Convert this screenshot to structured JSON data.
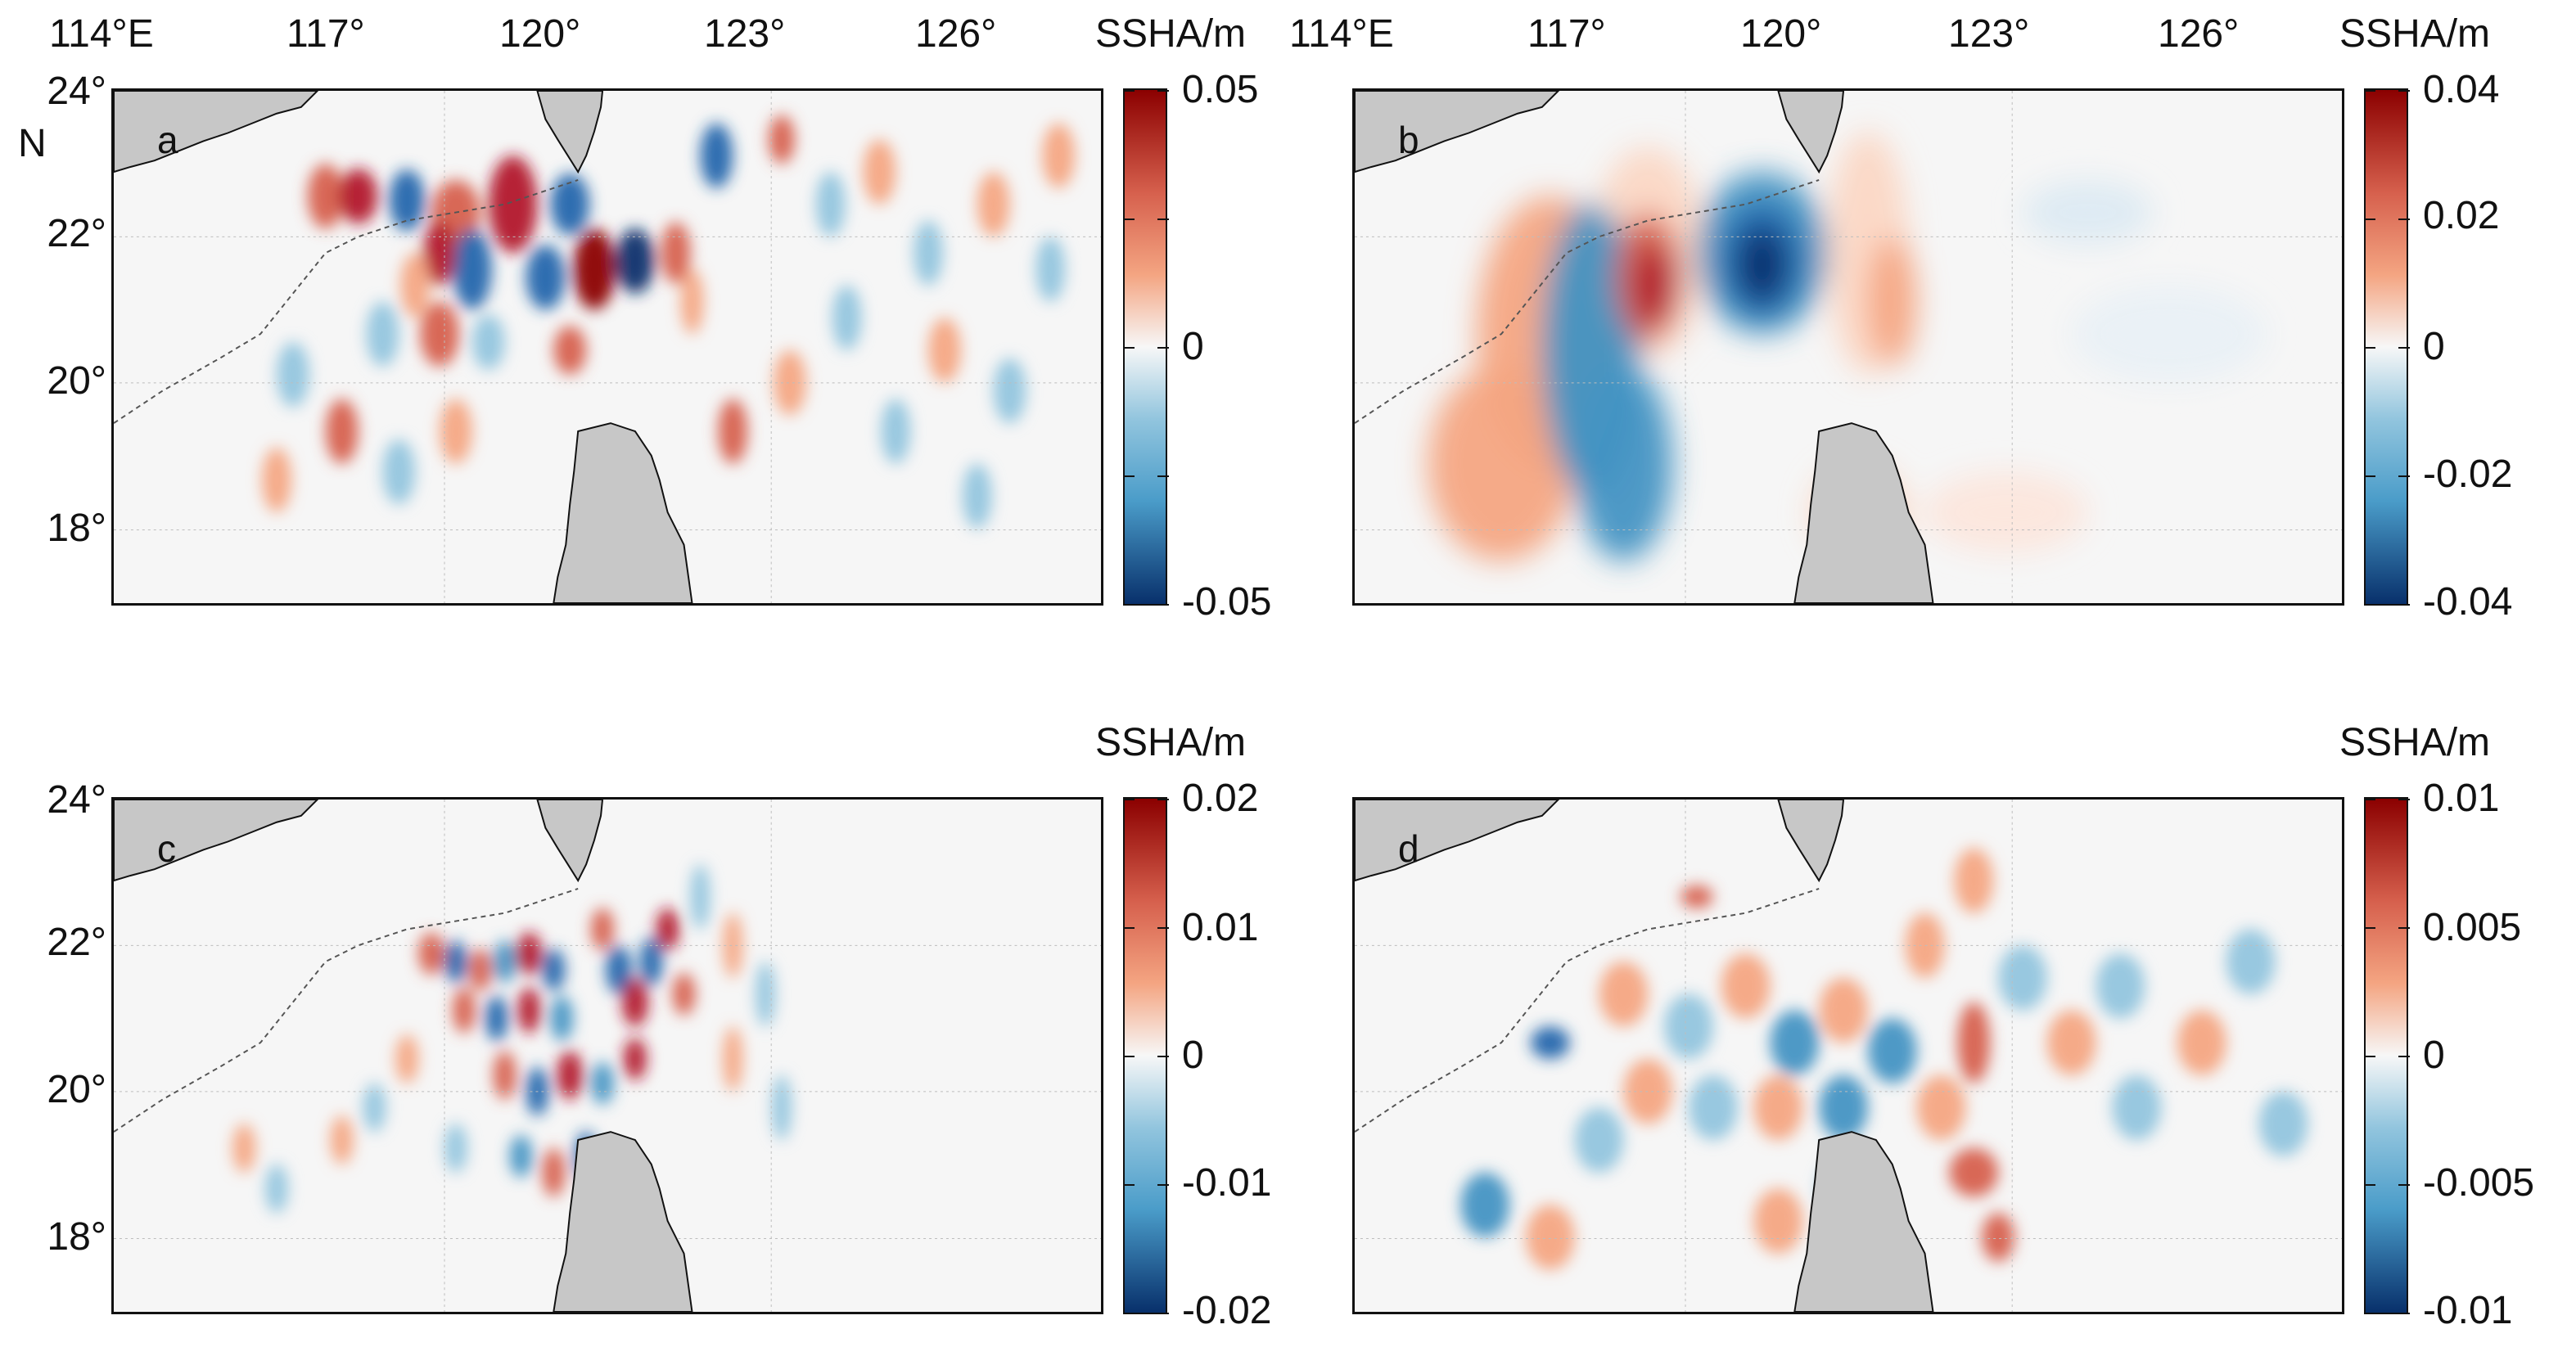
{
  "figure": {
    "units_label": "SSHA/m",
    "lon_ticks": [
      "114°E",
      "117°",
      "120°",
      "123°",
      "126°"
    ],
    "lat_ticks": [
      "24°",
      "22°",
      "20°",
      "18°"
    ],
    "lat_suffix": "N",
    "colormap": {
      "negative": "#08306b",
      "mid_neg": "#4a9cc9",
      "zero": "#f7f7f7",
      "mid_pos": "#f4a582",
      "positive": "#8b0000"
    },
    "land_color": "#c7c7c7"
  },
  "panels": [
    {
      "letter": "a",
      "colorbar": {
        "ticks": [
          "0.05",
          "",
          "0",
          "",
          "-0.05"
        ],
        "range": [
          -0.05,
          0.05
        ]
      },
      "show_top_lon": true,
      "show_lat_n": true
    },
    {
      "letter": "b",
      "colorbar": {
        "ticks": [
          "0.04",
          "0.02",
          "0",
          "-0.02",
          "-0.04"
        ],
        "range": [
          -0.04,
          0.04
        ]
      },
      "show_top_lon": true,
      "show_lat_n": false
    },
    {
      "letter": "c",
      "colorbar": {
        "ticks": [
          "0.02",
          "0.01",
          "0",
          "-0.01",
          "-0.02"
        ],
        "range": [
          -0.02,
          0.02
        ]
      },
      "show_top_lon": false,
      "show_lat_n": false
    },
    {
      "letter": "d",
      "colorbar": {
        "ticks": [
          "0.01",
          "0.005",
          "0",
          "-0.005",
          "-0.01"
        ],
        "range": [
          -0.01,
          0.01
        ]
      },
      "show_top_lon": false,
      "show_lat_n": false
    }
  ]
}
